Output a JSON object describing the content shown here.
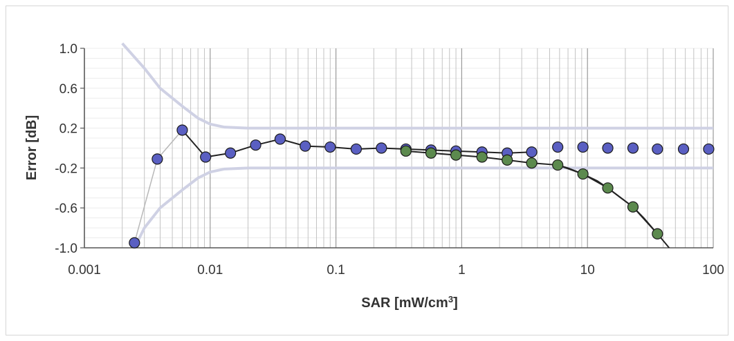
{
  "chart_data": {
    "type": "scatter",
    "title": "",
    "xlabel": "SAR [mW/cm",
    "xlabel_sup": "3",
    "xlabel_close": "]",
    "ylabel": "Error [dB]",
    "x_scale": "log",
    "xlim": [
      0.001,
      100
    ],
    "ylim": [
      -1.0,
      1.0
    ],
    "x_ticks": [
      0.001,
      0.01,
      0.1,
      1,
      10,
      100
    ],
    "x_tick_labels": [
      "0.001",
      "0.01",
      "0.1",
      "1",
      "10",
      "100"
    ],
    "y_ticks": [
      1.0,
      0.6,
      0.2,
      -0.2,
      -0.6,
      -1.0
    ],
    "y_tick_labels": [
      "1.0",
      "0.6",
      "0.2",
      "-0.2",
      "-0.6",
      "-1.0"
    ],
    "grid": true,
    "legend": "none",
    "series": [
      {
        "style": "markers-and-line",
        "color": "#5a5fc2",
        "line_color": "#222222",
        "x": [
          0.0025,
          0.0038,
          0.006,
          0.0092,
          0.0145,
          0.023,
          0.036,
          0.057,
          0.09,
          0.145,
          0.23,
          0.36,
          0.57,
          0.9,
          1.45,
          2.3,
          3.6,
          5.8,
          9.2,
          14.5,
          23,
          36,
          58,
          92
        ],
        "y": [
          -0.95,
          -0.11,
          0.18,
          -0.09,
          -0.05,
          0.03,
          0.09,
          0.02,
          0.01,
          -0.01,
          0.0,
          -0.01,
          -0.02,
          -0.03,
          -0.04,
          -0.05,
          -0.04,
          0.01,
          0.01,
          0.0,
          0.0,
          -0.01,
          -0.01,
          -0.01
        ]
      },
      {
        "style": "markers-and-line",
        "color": "#5c8a4e",
        "line_color": "#222222",
        "x": [
          0.36,
          0.57,
          0.9,
          1.45,
          2.3,
          3.6,
          5.8,
          9.2,
          14.5,
          23,
          36
        ],
        "y": [
          -0.03,
          -0.05,
          -0.07,
          -0.09,
          -0.12,
          -0.15,
          -0.17,
          -0.26,
          -0.4,
          -0.59,
          -0.86
        ]
      },
      {
        "style": "curve",
        "color": "#222222",
        "x": [
          5.8,
          7.0,
          9.2,
          12.0,
          14.5,
          18.0,
          23,
          28,
          36,
          42,
          48
        ],
        "y": [
          -0.17,
          -0.2,
          -0.26,
          -0.33,
          -0.4,
          -0.49,
          -0.59,
          -0.7,
          -0.86,
          -0.96,
          -1.05
        ]
      },
      {
        "style": "line",
        "color": "#cfd1e4",
        "x": [
          0.002,
          0.003,
          0.004,
          0.006,
          0.008,
          0.01,
          0.013,
          0.02,
          0.05,
          0.1,
          1,
          10,
          100
        ],
        "y": [
          1.05,
          0.8,
          0.6,
          0.42,
          0.3,
          0.24,
          0.21,
          0.2,
          0.2,
          0.2,
          0.2,
          0.2,
          0.2
        ]
      },
      {
        "style": "line",
        "color": "#cfd1e4",
        "x": [
          0.0025,
          0.003,
          0.004,
          0.006,
          0.008,
          0.01,
          0.013,
          0.02,
          0.05,
          0.1,
          1,
          10,
          100
        ],
        "y": [
          -1.0,
          -0.8,
          -0.6,
          -0.42,
          -0.3,
          -0.24,
          -0.21,
          -0.2,
          -0.2,
          -0.2,
          -0.2,
          -0.2,
          -0.2
        ]
      }
    ]
  }
}
